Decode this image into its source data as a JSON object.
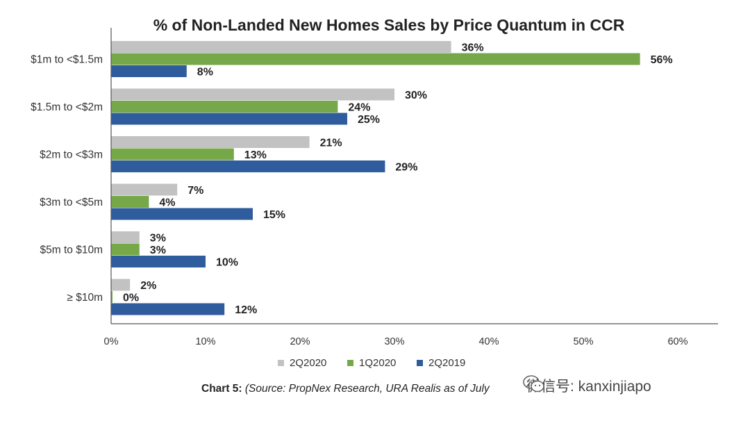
{
  "chart_data": {
    "type": "bar",
    "orientation": "horizontal",
    "title": "% of Non-Landed New Homes Sales by Price Quantum in CCR",
    "categories": [
      "$1m to <$1.5m",
      "$1.5m to <$2m",
      "$2m to <$3m",
      "$3m to <$5m",
      "$5m to $10m",
      "≥ $10m"
    ],
    "series": [
      {
        "name": "2Q2020",
        "color": "#c2c2c2",
        "values": [
          36,
          30,
          21,
          7,
          3,
          2
        ],
        "labels": [
          "36%",
          "30%",
          "21%",
          "7%",
          "3%",
          "2%"
        ]
      },
      {
        "name": "1Q2020",
        "color": "#76a84a",
        "values": [
          56,
          24,
          13,
          4,
          3,
          0
        ],
        "labels": [
          "56%",
          "24%",
          "13%",
          "4%",
          "3%",
          "0%"
        ]
      },
      {
        "name": "2Q2019",
        "color": "#2e5c9c",
        "values": [
          8,
          25,
          29,
          15,
          10,
          12
        ],
        "labels": [
          "8%",
          "25%",
          "29%",
          "15%",
          "10%",
          "12%"
        ]
      }
    ],
    "xlim": [
      0,
      60
    ],
    "xticks": [
      "0%",
      "10%",
      "20%",
      "30%",
      "40%",
      "50%",
      "60%"
    ],
    "xlabel": "",
    "ylabel": "",
    "grid": false,
    "legend_position": "bottom"
  },
  "caption": {
    "bold": "Chart 5:",
    "italic": "(Source: PropNex Research, URA Realis as of July"
  },
  "watermark": {
    "text": "微信号: kanxinjiapo",
    "icon": "wechat-icon"
  }
}
